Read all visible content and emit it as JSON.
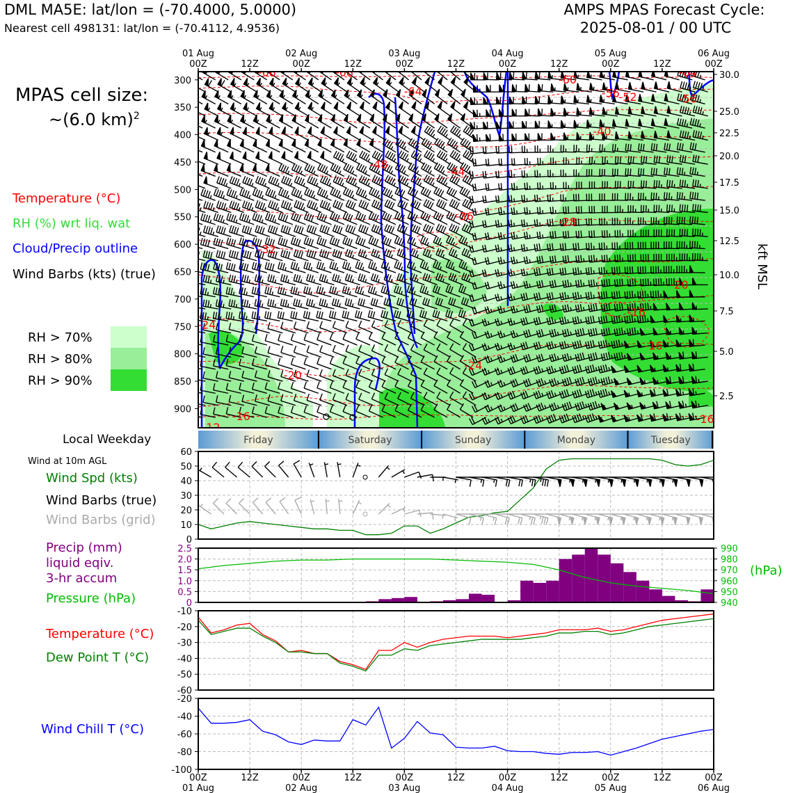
{
  "header": {
    "station_line": "DML MA5E: lat/lon = (-70.4000, 5.0000)",
    "cell_line": "Nearest cell 498131: lat/lon = (-70.4112, 4.9536)",
    "forecast_title": "AMPS MPAS Forecast Cycle:",
    "forecast_cycle": "2025-08-01 / 00 UTC"
  },
  "sidebar": {
    "cell_size_title": "MPAS cell size:",
    "cell_size_value": "~(6.0 km)",
    "cell_size_sup": "2",
    "legend_temperature": "Temperature (°C)",
    "legend_rh": "RH (%) wrt liq. wat",
    "legend_cloud": "Cloud/Precip outline",
    "legend_wind": "Wind Barbs (kts) (true)",
    "rh_levels": [
      "RH > 70%",
      "RH > 80%",
      "RH > 90%"
    ],
    "local_weekday": "Local Weekday",
    "wind_10m": "Wind at 10m AGL",
    "wind_spd": "Wind Spd (kts)",
    "wind_true": "Wind Barbs (true)",
    "wind_grid": "Wind Barbs (grid)",
    "precip_1": "Precip (mm)",
    "precip_2": "liquid eqiv.",
    "precip_3": "3-hr accum",
    "pressure": "Pressure (hPa)",
    "temp2m": "Temperature (°C)",
    "dewpoint": "Dew Point T (°C)",
    "windchill": "Wind Chill T (°C)"
  },
  "colors": {
    "temperature": "#ff0000",
    "rh_label": "#33dd33",
    "rh70": "#ccffcc",
    "rh80": "#99ee99",
    "rh90": "#33dd33",
    "cloud": "#0000ff",
    "wind_spd": "#008000",
    "wind_grid": "#aaaaaa",
    "precip": "#800080",
    "pressure": "#00bb00",
    "dewpoint": "#008000",
    "windchill": "#0000ff",
    "weekday_blue": "#5b9bd5",
    "weekday_pale": "#f3f0d8"
  },
  "chart_data": [
    {
      "type": "time-height cross-section",
      "top_ticks": [
        {
          "day": "01 Aug",
          "hour": "00Z"
        },
        {
          "day": "",
          "hour": "12Z"
        },
        {
          "day": "02 Aug",
          "hour": "00Z"
        },
        {
          "day": "",
          "hour": "12Z"
        },
        {
          "day": "03 Aug",
          "hour": "00Z"
        },
        {
          "day": "",
          "hour": "12Z"
        },
        {
          "day": "04 Aug",
          "hour": "00Z"
        },
        {
          "day": "",
          "hour": "12Z"
        },
        {
          "day": "05 Aug",
          "hour": "00Z"
        },
        {
          "day": "",
          "hour": "12Z"
        },
        {
          "day": "06 Aug",
          "hour": "00Z"
        }
      ],
      "y_left_unit": "hPa",
      "y_left_ticks": [
        "300",
        "350",
        "400",
        "450",
        "500",
        "550",
        "600",
        "650",
        "700",
        "750",
        "800",
        "850",
        "900"
      ],
      "y_right_label": "kft MSL",
      "y_right_ticks": [
        "30.0",
        "25.0",
        "22.5",
        "20.0",
        "17.5",
        "15.0",
        "12.5",
        "10.0",
        "7.5",
        "5.0",
        "2.5"
      ],
      "temperature_labels": [
        {
          "text": "-68",
          "t": 16,
          "p": 287
        },
        {
          "text": "-68",
          "t": 34,
          "p": 287
        },
        {
          "text": "-64",
          "t": 50,
          "p": 322
        },
        {
          "text": "-60",
          "t": 86,
          "p": 300
        },
        {
          "text": "-56",
          "t": 96,
          "p": 325
        },
        {
          "text": "-52",
          "t": 100,
          "p": 332
        },
        {
          "text": "-64",
          "t": 114,
          "p": 287
        },
        {
          "text": "-56",
          "t": 114,
          "p": 335
        },
        {
          "text": "-48",
          "t": 42,
          "p": 455
        },
        {
          "text": "-44",
          "t": 60,
          "p": 468
        },
        {
          "text": "-40",
          "t": 94,
          "p": 395
        },
        {
          "text": "-36",
          "t": 62,
          "p": 550
        },
        {
          "text": "-32",
          "t": 16,
          "p": 610
        },
        {
          "text": "-28",
          "t": 86,
          "p": 560
        },
        {
          "text": "-24",
          "t": 2,
          "p": 748
        },
        {
          "text": "-24",
          "t": 64,
          "p": 822
        },
        {
          "text": "-20",
          "t": 112,
          "p": 675
        },
        {
          "text": "-16",
          "t": 102,
          "p": 725
        },
        {
          "text": "-20",
          "t": 22,
          "p": 840
        },
        {
          "text": "-16",
          "t": 106,
          "p": 786
        },
        {
          "text": "-16",
          "t": 10,
          "p": 915
        },
        {
          "text": "-16",
          "t": 118,
          "p": 920
        },
        {
          "text": "-12",
          "t": 3,
          "p": 935
        }
      ],
      "rh_threshold_levels": [
        70,
        80,
        90
      ]
    },
    {
      "type": "weekday band",
      "days": [
        "Friday",
        "Saturday",
        "Sunday",
        "Monday",
        "Tuesday"
      ]
    },
    {
      "type": "line",
      "title": "Wind at 10m AGL",
      "ylim": [
        0,
        60
      ],
      "y_ticks": [
        "60",
        "50",
        "40",
        "30",
        "20",
        "10",
        "0"
      ],
      "x_hours": [
        0,
        3,
        6,
        9,
        12,
        15,
        18,
        21,
        24,
        27,
        30,
        33,
        36,
        39,
        42,
        45,
        48,
        51,
        54,
        57,
        60,
        63,
        66,
        69,
        72,
        75,
        78,
        81,
        84,
        87,
        90,
        93,
        96,
        99,
        102,
        105,
        108,
        111,
        114,
        117,
        120
      ],
      "series": [
        {
          "name": "Wind Spd (kts)",
          "values": [
            10,
            7,
            9,
            11,
            12,
            11,
            10,
            9,
            8,
            7,
            7,
            6,
            6,
            3,
            3,
            4,
            9,
            9,
            4,
            7,
            11,
            15,
            16,
            18,
            19,
            27,
            35,
            48,
            54,
            55,
            55,
            55,
            55,
            55,
            55,
            55,
            54,
            51,
            50,
            51,
            54
          ]
        }
      ],
      "barbs_true_speed_kts": [
        10,
        7,
        9,
        11,
        12,
        11,
        10,
        9,
        8,
        7,
        7,
        6,
        6,
        3,
        3,
        4,
        9,
        9,
        4,
        7,
        11,
        15,
        16,
        18,
        19,
        27,
        35,
        48,
        54,
        55,
        55,
        55,
        55,
        55,
        55,
        55,
        54,
        51,
        50,
        51,
        54
      ],
      "barbs_true_dir_deg": [
        300,
        300,
        310,
        310,
        310,
        315,
        315,
        320,
        330,
        340,
        350,
        350,
        20,
        null,
        40,
        60,
        70,
        80,
        90,
        100,
        100,
        100,
        100,
        100,
        100,
        100,
        100,
        100,
        100,
        100,
        100,
        100,
        100,
        100,
        100,
        100,
        100,
        100,
        100,
        100,
        100
      ]
    },
    {
      "type": "bar",
      "x_hours": [
        42,
        45,
        48,
        51,
        54,
        57,
        60,
        63,
        66,
        69,
        72,
        75,
        78,
        81,
        84,
        87,
        90,
        93,
        96,
        99,
        102,
        105,
        108,
        111,
        114,
        117,
        120
      ],
      "precip_mm": [
        0.05,
        0.15,
        0.2,
        0.25,
        0.0,
        0.05,
        0.1,
        0.15,
        0.4,
        0.35,
        0.0,
        0.1,
        1.0,
        0.9,
        1.0,
        2.0,
        2.2,
        2.5,
        2.2,
        1.8,
        1.4,
        1.0,
        0.6,
        0.3,
        0.1,
        0.05,
        0.6
      ],
      "precip_ylim": [
        0,
        2.5
      ],
      "precip_ticks": [
        "2.5",
        "2.0",
        "1.5",
        "1.0",
        "0.5",
        "0"
      ],
      "pressure_label": "(hPa)",
      "pressure_ylim": [
        940,
        990
      ],
      "pressure_ticks": [
        "990",
        "980",
        "970",
        "960",
        "950",
        "940"
      ],
      "pressure_x_hours": [
        0,
        6,
        12,
        18,
        24,
        30,
        36,
        42,
        48,
        54,
        60,
        66,
        72,
        78,
        84,
        90,
        96,
        102,
        108,
        114,
        120
      ],
      "pressure_values": [
        971,
        974,
        976,
        978,
        979,
        979,
        980,
        980,
        980,
        980,
        979,
        978,
        977,
        975,
        970,
        963,
        958,
        955,
        953,
        951,
        948
      ]
    },
    {
      "type": "line",
      "ylim": [
        -60,
        -10
      ],
      "y_ticks": [
        "-10",
        "-20",
        "-30",
        "-40",
        "-50",
        "-60"
      ],
      "x_hours": [
        0,
        3,
        6,
        9,
        12,
        15,
        18,
        21,
        24,
        27,
        30,
        33,
        36,
        39,
        42,
        45,
        48,
        51,
        54,
        57,
        60,
        63,
        66,
        69,
        72,
        75,
        78,
        81,
        84,
        87,
        90,
        93,
        96,
        99,
        102,
        105,
        108,
        111,
        114,
        117,
        120
      ],
      "series": [
        {
          "name": "Temperature (°C)",
          "values": [
            -14,
            -24,
            -22,
            -19,
            -18,
            -25,
            -29,
            -36,
            -35,
            -37,
            -37,
            -42,
            -44,
            -47,
            -35,
            -35,
            -30,
            -33,
            -30,
            -28,
            -27,
            -26,
            -26,
            -26,
            -27,
            -26,
            -25,
            -24,
            -22,
            -22,
            -22,
            -21,
            -23,
            -22,
            -20,
            -18,
            -16,
            -15,
            -14,
            -13,
            -12
          ]
        },
        {
          "name": "Dew Point T (°C)",
          "values": [
            -16,
            -25,
            -23,
            -21,
            -21,
            -26,
            -30,
            -36,
            -36,
            -37,
            -37,
            -43,
            -45,
            -48,
            -38,
            -38,
            -34,
            -35,
            -32,
            -31,
            -30,
            -29,
            -28,
            -28,
            -28,
            -28,
            -27,
            -26,
            -24,
            -24,
            -23,
            -23,
            -25,
            -24,
            -22,
            -20,
            -19,
            -18,
            -17,
            -16,
            -15
          ]
        }
      ]
    },
    {
      "type": "line",
      "ylim": [
        -100,
        -20
      ],
      "y_ticks": [
        "-20",
        "-40",
        "-60",
        "-80",
        "-100"
      ],
      "x_hours": [
        0,
        3,
        6,
        9,
        12,
        15,
        18,
        21,
        24,
        27,
        30,
        33,
        36,
        39,
        42,
        45,
        48,
        51,
        54,
        57,
        60,
        63,
        66,
        69,
        72,
        75,
        78,
        81,
        84,
        87,
        90,
        93,
        96,
        99,
        102,
        105,
        108,
        111,
        114,
        117,
        120
      ],
      "series": [
        {
          "name": "Wind Chill T (°C)",
          "values": [
            -31,
            -48,
            -48,
            -47,
            -44,
            -57,
            -61,
            -69,
            -72,
            -67,
            -68,
            -68,
            -44,
            -50,
            -30,
            -76,
            -65,
            -46,
            -59,
            -61,
            -75,
            -76,
            -76,
            -74,
            -79,
            -80,
            -80,
            -82,
            -83,
            -81,
            -81,
            -80,
            -84,
            -80,
            -76,
            -71,
            -66,
            -63,
            -60,
            -57,
            -55
          ]
        }
      ],
      "bottom_ticks": [
        {
          "hour": "00Z",
          "day": "01 Aug"
        },
        {
          "hour": "12Z",
          "day": ""
        },
        {
          "hour": "00Z",
          "day": "02 Aug"
        },
        {
          "hour": "12Z",
          "day": ""
        },
        {
          "hour": "00Z",
          "day": "03 Aug"
        },
        {
          "hour": "12Z",
          "day": ""
        },
        {
          "hour": "00Z",
          "day": "04 Aug"
        },
        {
          "hour": "12Z",
          "day": ""
        },
        {
          "hour": "00Z",
          "day": "05 Aug"
        },
        {
          "hour": "12Z",
          "day": ""
        },
        {
          "hour": "00Z",
          "day": "06 Aug"
        }
      ]
    }
  ]
}
